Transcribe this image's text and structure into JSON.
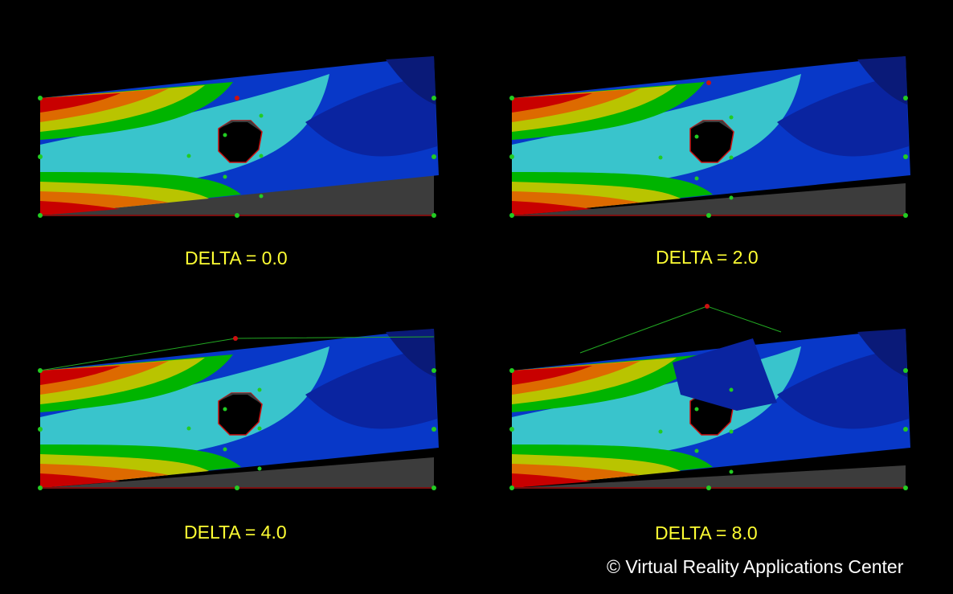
{
  "panels": [
    {
      "caption": "DELTA = 0.0"
    },
    {
      "caption": "DELTA = 2.0"
    },
    {
      "caption": "DELTA = 4.0"
    },
    {
      "caption": "DELTA = 8.0"
    }
  ],
  "credit": "© Virtual Reality Applications Center",
  "colors": {
    "background": "#000000",
    "caption": "#ffff33",
    "credit": "#ffffff",
    "contour_scale": [
      "#c80000",
      "#d53000",
      "#dd6a00",
      "#c9a000",
      "#b9c400",
      "#55c000",
      "#00b400",
      "#00b4b0",
      "#39c4cc",
      "#1d78c8",
      "#1060c8",
      "#0838c8",
      "#0a24a0",
      "#0a1a78"
    ],
    "shadow": "#3c3c3c",
    "control_point": "#22cc22",
    "active_point": "#cc1111"
  }
}
